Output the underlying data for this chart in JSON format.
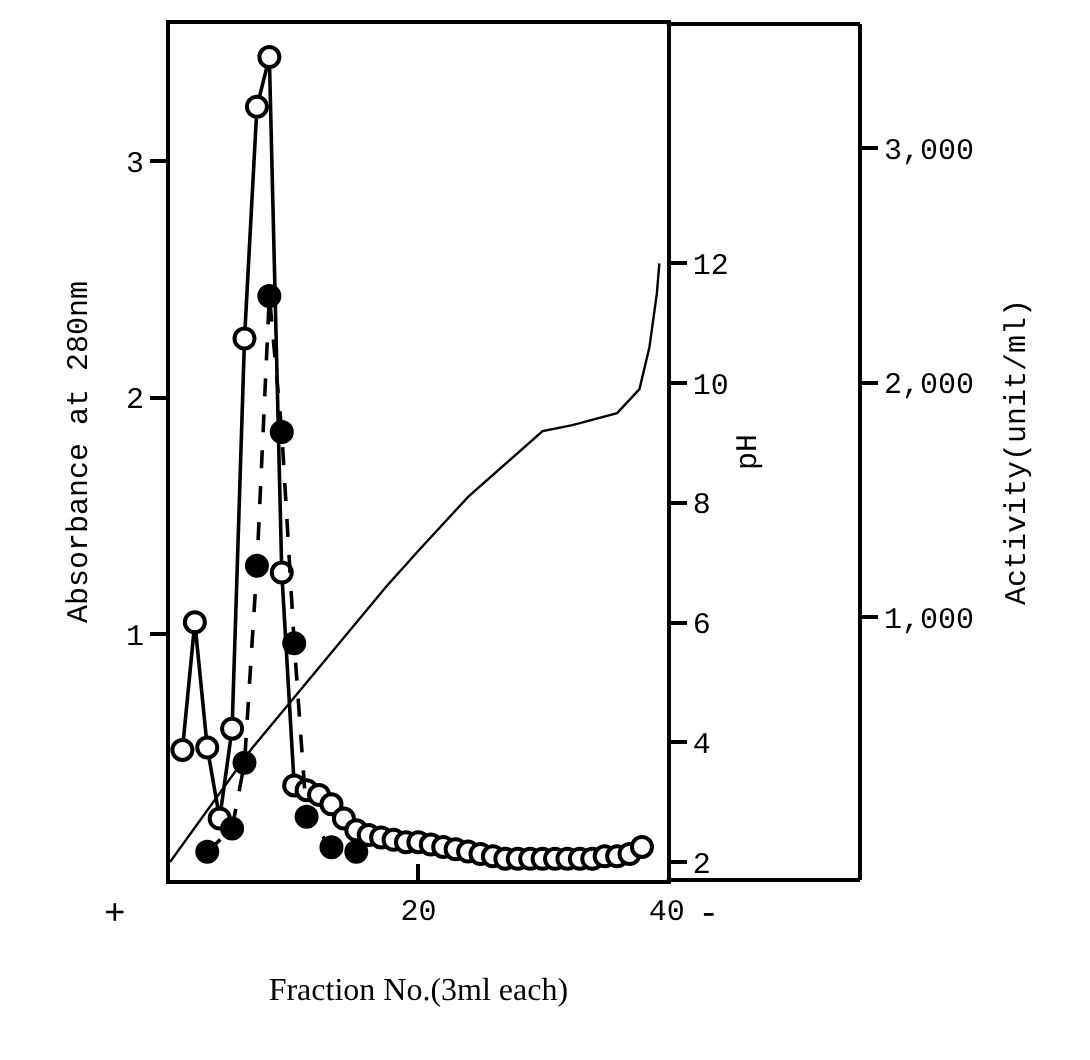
{
  "chart_data": {
    "type": "line",
    "xlabel": "Fraction No.(3ml each)",
    "ylabel": "Absorbance at 280nm",
    "y2label": "pH",
    "y3label": "Activity(unit/ml)",
    "xlim": [
      0,
      40
    ],
    "xticks": [
      20,
      40
    ],
    "ylim": [
      -0.04,
      3.58
    ],
    "yticks": [
      1,
      2,
      3
    ],
    "y2lim": [
      1.7,
      16
    ],
    "y2ticks": [
      2,
      4,
      6,
      8,
      10,
      12
    ],
    "y3lim": [
      -120,
      3530
    ],
    "y3ticks": [
      {
        "value": 1000,
        "label": "1,000"
      },
      {
        "value": 2000,
        "label": "2,000"
      },
      {
        "value": 3000,
        "label": "3,000"
      }
    ],
    "annotations": [
      "+",
      "-"
    ],
    "series": [
      {
        "color": "#ffffff",
        "marker": "circle",
        "line_style": "solid",
        "x": [
          1,
          2,
          3,
          4,
          5,
          6,
          7,
          8,
          9,
          10,
          11,
          12,
          13,
          14,
          15,
          16,
          17,
          18,
          19,
          20,
          21,
          22,
          23,
          24,
          25,
          26,
          27,
          28,
          29,
          30,
          31,
          32,
          33,
          34,
          35,
          36,
          37,
          38
        ],
        "values": [
          0.51,
          1.05,
          0.52,
          0.22,
          0.6,
          2.25,
          3.23,
          3.44,
          1.26,
          0.36,
          0.34,
          0.32,
          0.28,
          0.22,
          0.17,
          0.15,
          0.14,
          0.13,
          0.12,
          0.12,
          0.11,
          0.1,
          0.09,
          0.08,
          0.07,
          0.06,
          0.05,
          0.05,
          0.05,
          0.05,
          0.05,
          0.05,
          0.05,
          0.05,
          0.06,
          0.06,
          0.07,
          0.1
        ]
      },
      {
        "color": "#000000",
        "marker": "circle",
        "line_style": "dashed",
        "axis": "y3",
        "x": [
          3,
          5,
          6,
          7,
          8,
          9,
          10,
          11,
          13,
          15
        ],
        "values": [
          0,
          100,
          380,
          1220,
          2370,
          1790,
          890,
          150,
          20,
          0
        ]
      },
      {
        "color": "#000000",
        "marker": "none",
        "line_style": "solid",
        "axis": "y2",
        "x": [
          0,
          6.6,
          17.4,
          20,
          24,
          30,
          32.4,
          36,
          37.8,
          38.6,
          39.2,
          39.4
        ],
        "values": [
          2.0,
          3.9,
          6.6,
          7.2,
          8.1,
          9.2,
          9.3,
          9.5,
          9.9,
          10.6,
          11.5,
          12.0
        ]
      }
    ]
  }
}
